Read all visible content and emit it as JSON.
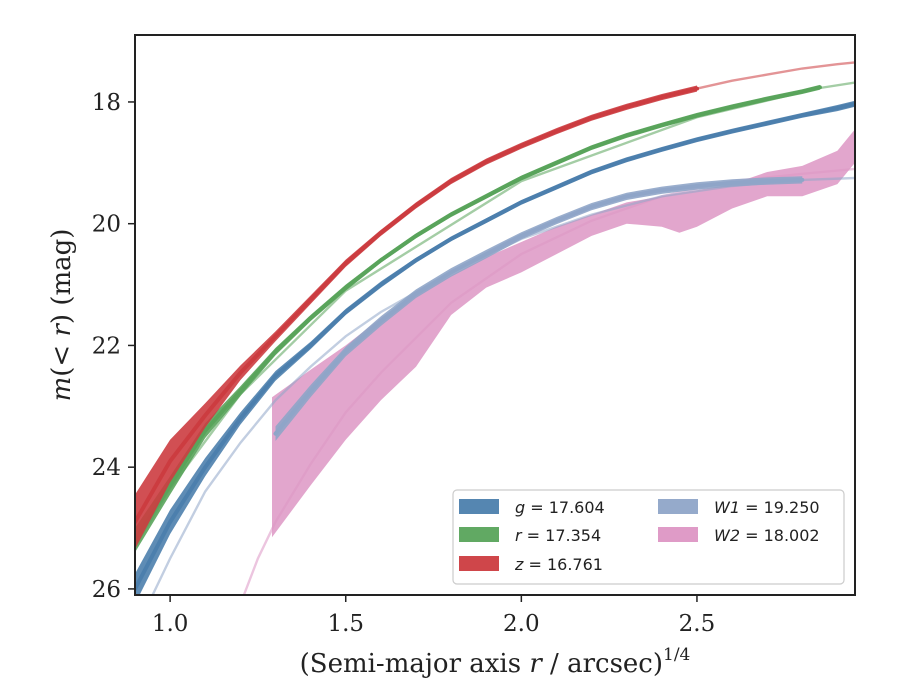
{
  "chart_data": {
    "type": "line",
    "xlabel": "(Semi-major axis r / arcsec)",
    "xlabel_parts": {
      "pre": "(Semi-major axis ",
      "var": "r",
      "post": " / arcsec)",
      "sup": "1/4"
    },
    "ylabel": "m(< r) (mag)",
    "ylabel_parts": {
      "var1": "m",
      "mid": "(< ",
      "var2": "r",
      "post": ") (mag)"
    },
    "xlim": [
      0.9,
      2.95
    ],
    "ylim": [
      26.1,
      16.9
    ],
    "y_inverted": true,
    "xticks": [
      1.0,
      1.5,
      2.0,
      2.5
    ],
    "xtick_labels": [
      "1.0",
      "1.5",
      "2.0",
      "2.5"
    ],
    "yticks": [
      18,
      20,
      22,
      24,
      26
    ],
    "ytick_labels": [
      "18",
      "20",
      "22",
      "24",
      "26"
    ],
    "grid": false,
    "legend_position": "lower-right",
    "series": [
      {
        "name": "g = 17.604",
        "var": "g",
        "value": "17.604",
        "color": "#4c7fad",
        "x": [
          0.9,
          1.0,
          1.1,
          1.2,
          1.3,
          1.4,
          1.5,
          1.6,
          1.7,
          1.8,
          1.9,
          2.0,
          2.1,
          2.2,
          2.3,
          2.4,
          2.5,
          2.6,
          2.7,
          2.8,
          2.9,
          2.95
        ],
        "y": [
          26.0,
          24.9,
          24.0,
          23.2,
          22.5,
          22.0,
          21.45,
          21.0,
          20.6,
          20.25,
          19.95,
          19.65,
          19.4,
          19.15,
          18.95,
          18.78,
          18.62,
          18.48,
          18.35,
          18.22,
          18.1,
          18.03
        ],
        "band": [
          0.25,
          0.2,
          0.15,
          0.1,
          0.08,
          0.06,
          0.05,
          0.05,
          0.04,
          0.04,
          0.04,
          0.04,
          0.04,
          0.04,
          0.04,
          0.04,
          0.04,
          0.04,
          0.04,
          0.04,
          0.05,
          0.05
        ],
        "model_x": [
          0.9,
          1.0,
          1.1,
          1.2,
          1.3,
          1.4,
          1.5,
          1.6,
          1.7,
          1.8,
          1.9,
          2.0,
          2.1,
          2.2,
          2.3,
          2.4,
          2.5,
          2.6,
          2.7,
          2.8,
          2.9,
          2.95
        ],
        "model_y": [
          26.0,
          24.9,
          24.0,
          23.2,
          22.5,
          22.0,
          21.45,
          21.0,
          20.6,
          20.25,
          19.95,
          19.65,
          19.4,
          19.15,
          18.95,
          18.78,
          18.62,
          18.48,
          18.35,
          18.22,
          18.1,
          18.03
        ]
      },
      {
        "name": "r = 17.354",
        "var": "r",
        "value": "17.354",
        "color": "#59a45b",
        "x": [
          0.9,
          1.0,
          1.1,
          1.2,
          1.3,
          1.4,
          1.5,
          1.6,
          1.7,
          1.8,
          1.9,
          2.0,
          2.1,
          2.2,
          2.3,
          2.4,
          2.5,
          2.6,
          2.7,
          2.8,
          2.85
        ],
        "y": [
          25.2,
          24.3,
          23.4,
          22.75,
          22.1,
          21.55,
          21.05,
          20.6,
          20.2,
          19.85,
          19.55,
          19.25,
          19.0,
          18.75,
          18.55,
          18.38,
          18.22,
          18.08,
          17.95,
          17.83,
          17.76
        ],
        "band": [
          0.2,
          0.15,
          0.12,
          0.08,
          0.06,
          0.05,
          0.05,
          0.04,
          0.04,
          0.04,
          0.04,
          0.04,
          0.04,
          0.04,
          0.04,
          0.04,
          0.04,
          0.04,
          0.04,
          0.04,
          0.04
        ],
        "model_x": [
          0.9,
          1.0,
          1.2,
          1.5,
          2.0,
          2.5,
          2.85,
          2.95
        ],
        "model_y": [
          25.3,
          24.35,
          22.8,
          21.1,
          19.3,
          18.25,
          17.77,
          17.68
        ]
      },
      {
        "name": "z = 16.761",
        "var": "z",
        "value": "16.761",
        "color": "#cc3c40",
        "x": [
          0.9,
          1.0,
          1.1,
          1.2,
          1.3,
          1.4,
          1.5,
          1.6,
          1.7,
          1.8,
          1.9,
          2.0,
          2.1,
          2.2,
          2.3,
          2.4,
          2.5
        ],
        "y": [
          24.9,
          23.9,
          23.15,
          22.45,
          21.85,
          21.25,
          20.65,
          20.15,
          19.7,
          19.3,
          18.98,
          18.72,
          18.48,
          18.26,
          18.08,
          17.92,
          17.78
        ],
        "band": [
          0.45,
          0.35,
          0.2,
          0.12,
          0.08,
          0.07,
          0.06,
          0.05,
          0.05,
          0.05,
          0.05,
          0.05,
          0.05,
          0.05,
          0.05,
          0.05,
          0.05
        ],
        "model_x": [
          2.5,
          2.6,
          2.7,
          2.8,
          2.9,
          2.95
        ],
        "model_y": [
          17.78,
          17.65,
          17.55,
          17.45,
          17.38,
          17.35
        ]
      },
      {
        "name": "W1 = 19.250",
        "var": "W1",
        "value": "19.250",
        "color": "#8fa5c8",
        "x": [
          1.3,
          1.4,
          1.5,
          1.6,
          1.7,
          1.8,
          1.9,
          2.0,
          2.1,
          2.2,
          2.3,
          2.4,
          2.5,
          2.6,
          2.7,
          2.8
        ],
        "y": [
          23.45,
          22.75,
          22.1,
          21.6,
          21.15,
          20.8,
          20.5,
          20.2,
          19.95,
          19.72,
          19.55,
          19.45,
          19.38,
          19.33,
          19.3,
          19.28
        ],
        "band": [
          0.12,
          0.1,
          0.08,
          0.08,
          0.07,
          0.07,
          0.07,
          0.06,
          0.06,
          0.06,
          0.06,
          0.06,
          0.06,
          0.06,
          0.06,
          0.06
        ],
        "model_x": [
          0.95,
          1.0,
          1.1,
          1.2,
          1.3,
          1.4,
          1.5,
          1.6,
          1.8,
          2.0,
          2.2,
          2.4,
          2.6,
          2.8,
          2.95
        ],
        "model_y": [
          26.1,
          25.5,
          24.4,
          23.6,
          22.9,
          22.35,
          21.85,
          21.45,
          20.8,
          20.25,
          19.85,
          19.55,
          19.38,
          19.28,
          19.25
        ]
      },
      {
        "name": "W2 = 18.002",
        "var": "W2",
        "value": "18.002",
        "color": "#dd96c4",
        "x": [
          1.29,
          1.4,
          1.5,
          1.6,
          1.7,
          1.8,
          1.9,
          2.0,
          2.1,
          2.2,
          2.3,
          2.4,
          2.45,
          2.5,
          2.6,
          2.7,
          2.8,
          2.9,
          2.95
        ],
        "y_low": [
          22.85,
          22.4,
          22.0,
          21.55,
          21.15,
          20.85,
          20.55,
          20.3,
          20.05,
          19.85,
          19.65,
          19.55,
          19.5,
          19.45,
          19.35,
          19.15,
          19.05,
          18.8,
          18.45
        ],
        "y_high": [
          25.15,
          24.3,
          23.55,
          22.9,
          22.35,
          21.5,
          21.05,
          20.8,
          20.5,
          20.2,
          20.0,
          20.05,
          20.15,
          20.05,
          19.75,
          19.55,
          19.55,
          19.35,
          19.0
        ],
        "model_x": [
          1.21,
          1.25,
          1.3,
          1.4,
          1.5,
          1.6,
          1.8,
          2.0,
          2.2,
          2.4,
          2.6,
          2.8,
          2.95
        ],
        "model_y": [
          26.1,
          25.5,
          24.9,
          23.95,
          23.1,
          22.45,
          21.3,
          20.5,
          19.95,
          19.55,
          19.3,
          19.18,
          19.1
        ]
      }
    ]
  }
}
